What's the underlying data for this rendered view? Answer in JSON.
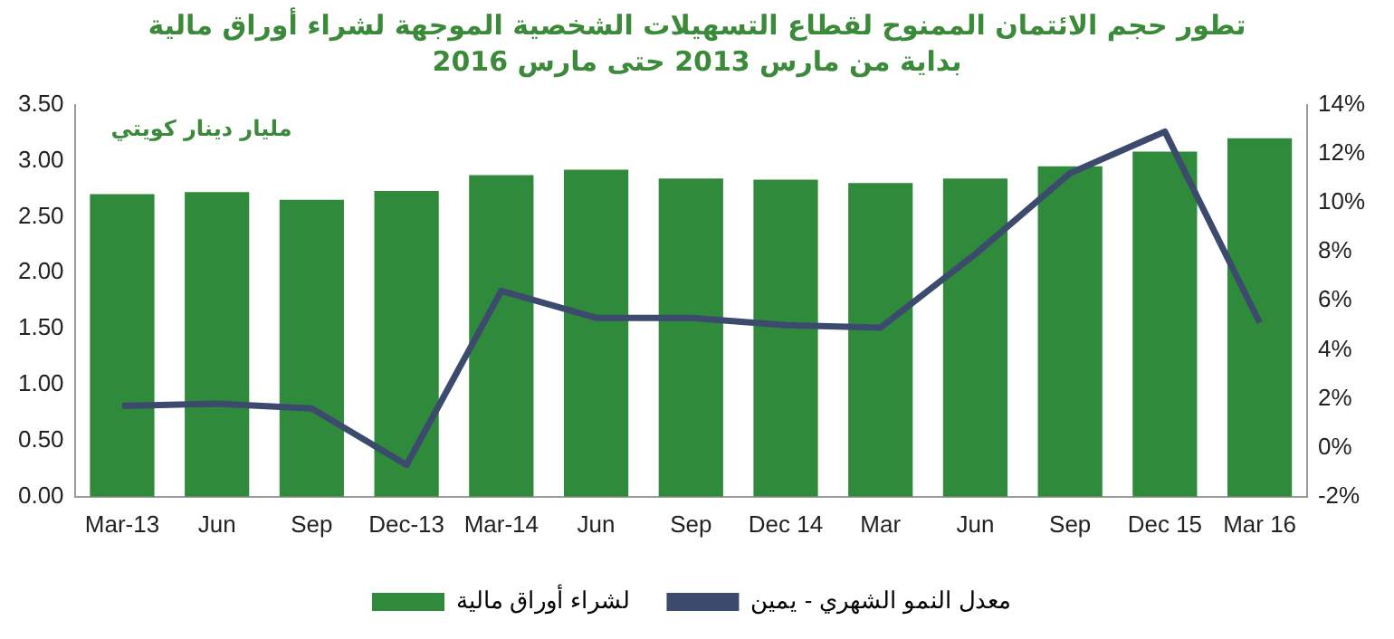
{
  "chart_data": {
    "type": "bar",
    "title": "تطور حجم الائتمان الممنوح لقطاع التسهيلات الشخصية الموجهة لشراء أوراق مالية",
    "subtitle": "بداية من مارس 2013 حتى مارس 2016",
    "annotations": [
      "مليار دينار كويتي"
    ],
    "categories": [
      "Mar-13",
      "Jun",
      "Sep",
      "Dec-13",
      "Mar-14",
      "Jun",
      "Sep",
      "Dec 14",
      "Mar",
      "Jun",
      "Sep",
      "Dec 15",
      "Mar 16"
    ],
    "series": [
      {
        "name": "لشراء أوراق مالية",
        "color": "#2f8a3c",
        "values": [
          2.7,
          2.72,
          2.65,
          2.73,
          2.87,
          2.92,
          2.84,
          2.83,
          2.8,
          2.84,
          2.95,
          3.08,
          3.2
        ]
      },
      {
        "name": "معدل النمو الشهري - يمين",
        "type": "line",
        "axis": "y2",
        "color": "#3c4a6e",
        "values": [
          1.7,
          1.8,
          1.6,
          -0.7,
          6.4,
          5.3,
          5.3,
          5.0,
          4.9,
          7.9,
          11.2,
          12.9,
          5.1
        ]
      }
    ],
    "ylim": [
      0,
      3.5
    ],
    "yticks": [
      {
        "value": 0,
        "label": "0.00"
      },
      {
        "value": 0.5,
        "label": "0.50"
      },
      {
        "value": 1,
        "label": "1.00"
      },
      {
        "value": 1.5,
        "label": "1.50"
      },
      {
        "value": 2,
        "label": "2.00"
      },
      {
        "value": 2.5,
        "label": "2.50"
      },
      {
        "value": 3,
        "label": "3.00"
      },
      {
        "value": 3.5,
        "label": "3.50"
      }
    ],
    "y2lim": [
      -2,
      14
    ],
    "y2ticks": [
      {
        "value": -2,
        "label": "-2%"
      },
      {
        "value": 0,
        "label": "0%"
      },
      {
        "value": 2,
        "label": "2%"
      },
      {
        "value": 4,
        "label": "4%"
      },
      {
        "value": 6,
        "label": "6%"
      },
      {
        "value": 8,
        "label": "8%"
      },
      {
        "value": 10,
        "label": "10%"
      },
      {
        "value": 12,
        "label": "12%"
      },
      {
        "value": 14,
        "label": "14%"
      }
    ],
    "grid": false,
    "legend": "bottom",
    "marker": "none",
    "line_style": "solid"
  }
}
